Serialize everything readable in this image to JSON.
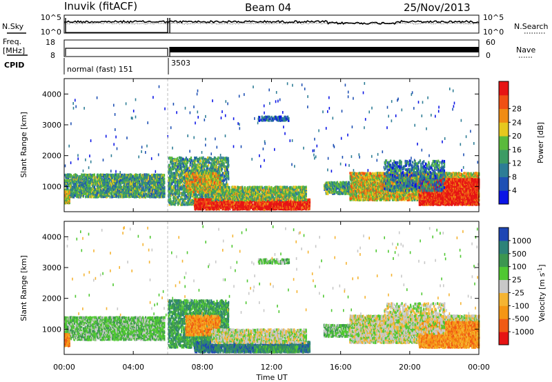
{
  "header": {
    "station": "Inuvik (fitACF)",
    "beam": "Beam 04",
    "date": "25/Nov/2013"
  },
  "colors": {
    "power": [
      "#0a14e6",
      "#1e50b4",
      "#2d7d96",
      "#3c9b64",
      "#5aba3c",
      "#e6c81e",
      "#f08c14",
      "#f05014",
      "#e61414"
    ],
    "velocity": [
      "#e61414",
      "#f05a14",
      "#f59614",
      "#f5b432",
      "#c8c8c8",
      "#50c832",
      "#3c9650",
      "#2d8278",
      "#1e46b4"
    ]
  },
  "chart_data": [
    {
      "type": "line",
      "title": "",
      "left_label": "N.Sky",
      "right_label": "N.Search",
      "left_ticks": [
        "10^5",
        "10^0"
      ],
      "right_ticks": [
        "10^5",
        "10^0"
      ],
      "x_ticks": [
        "00:00",
        "04:00",
        "08:00",
        "12:00",
        "16:00",
        "20:00",
        "00:00"
      ],
      "xlim_hours": [
        0,
        24
      ]
    },
    {
      "type": "line",
      "left_label": "Freq.",
      "left_label_2": "[MHz]",
      "right_label": "Nave",
      "left_ticks": [
        18,
        8
      ],
      "right_ticks": [
        60,
        0
      ],
      "cpid_label": "CPID",
      "cpid_segments": [
        {
          "label": "normal (fast) 151",
          "start_hour": 0,
          "end_hour": 6
        },
        {
          "label": "3503",
          "start_hour": 6,
          "end_hour": 24
        }
      ]
    },
    {
      "type": "heatmap",
      "quantity": "Power",
      "ylabel": "Slant Range [km]",
      "yticks": [
        1000,
        2000,
        3000,
        4000
      ],
      "ylim": [
        180,
        4500
      ],
      "colorbar_label": "Power [dB]",
      "colorbar_ticks": [
        4,
        8,
        12,
        16,
        20,
        24,
        28
      ],
      "colorbar_range": [
        0,
        32
      ]
    },
    {
      "type": "heatmap",
      "quantity": "Velocity",
      "ylabel": "Slant Range [km]",
      "xlabel": "Time UT",
      "yticks": [
        1000,
        2000,
        3000,
        4000
      ],
      "ylim": [
        180,
        4500
      ],
      "colorbar_label": "Velocity [m s-1]",
      "colorbar_unit_main": "Velocity [m s",
      "colorbar_unit_exp": "-1",
      "colorbar_unit_end": "]",
      "colorbar_ticks": [
        "1000",
        "500",
        "100",
        "25",
        "-25",
        "-100",
        "-500",
        "-1000"
      ]
    }
  ]
}
